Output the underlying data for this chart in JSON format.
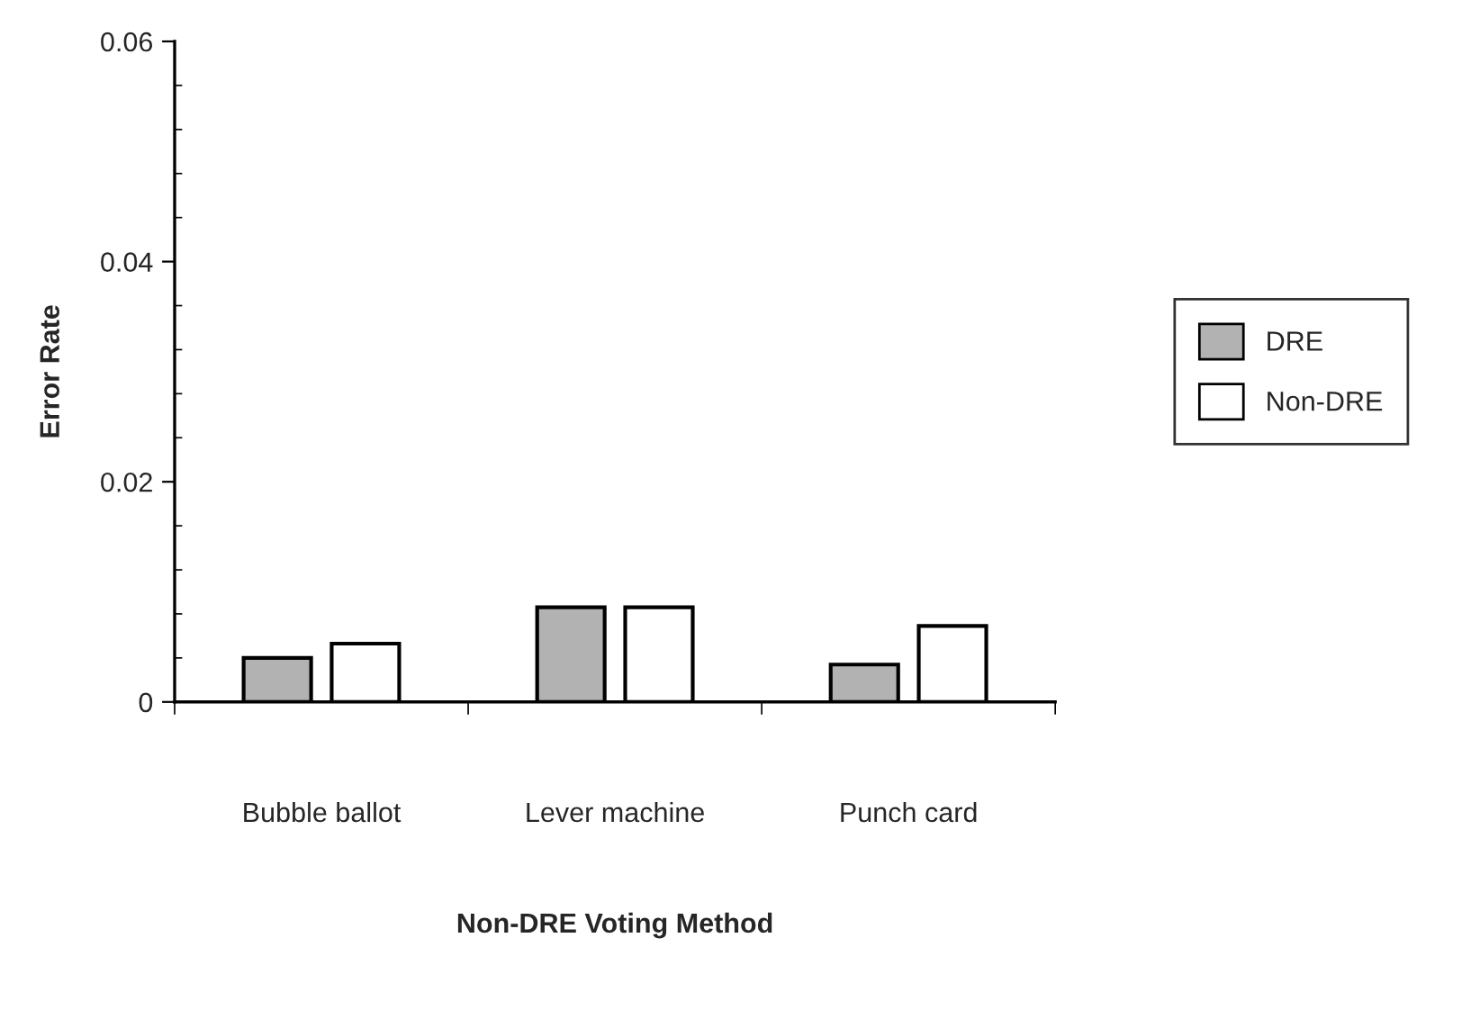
{
  "chart_data": {
    "type": "bar",
    "xlabel": "Non-DRE Voting Method",
    "ylabel": "Error Rate",
    "categories": [
      "Bubble ballot",
      "Lever machine",
      "Punch card"
    ],
    "series": [
      {
        "name": "DRE",
        "color": "#b2b2b2",
        "values": [
          0.004,
          0.0086,
          0.0034
        ]
      },
      {
        "name": "Non-DRE",
        "color": "#ffffff",
        "values": [
          0.0053,
          0.0086,
          0.0069
        ]
      }
    ],
    "ylim": [
      0,
      0.06
    ],
    "yticks": [
      0,
      0.02,
      0.04,
      0.06
    ],
    "grid": false,
    "legend": "right"
  }
}
